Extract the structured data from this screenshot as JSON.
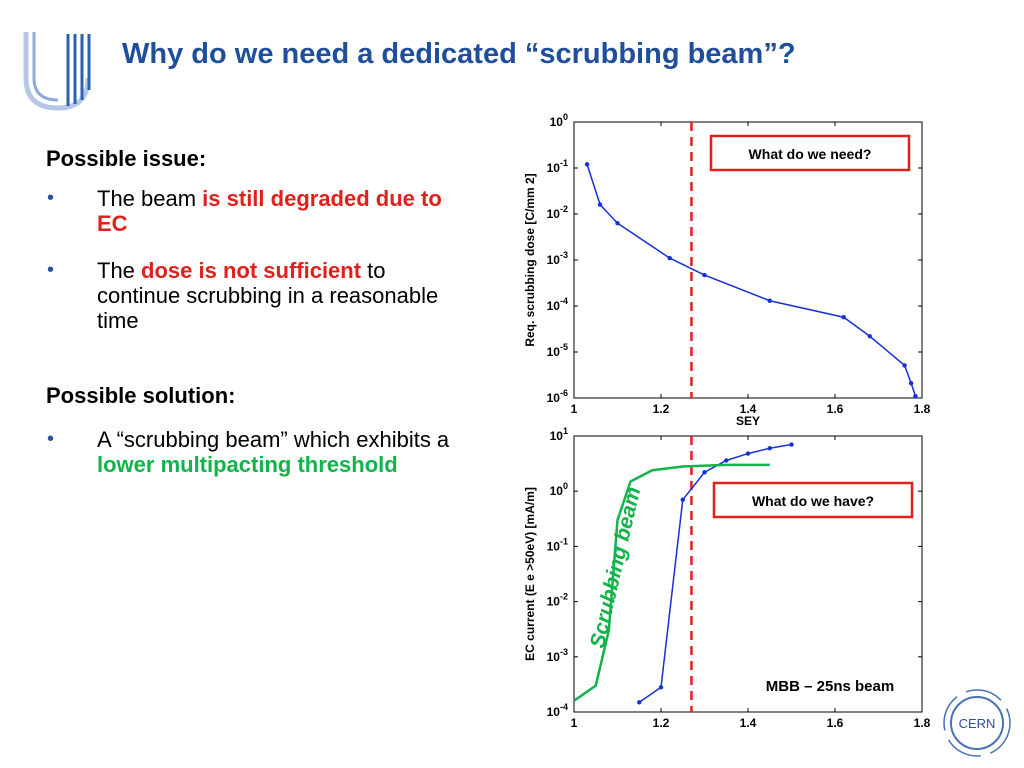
{
  "slide": {
    "title": "Why do we need a dedicated “scrubbing beam”?",
    "issue_heading": "Possible issue:",
    "issue_bullets": [
      {
        "pre": "The beam ",
        "hl": "is still degraded due to EC",
        "post": ""
      },
      {
        "pre": "The ",
        "hl": "dose is not sufficient",
        "post": " to continue scrubbing in a reasonable time"
      }
    ],
    "solution_heading": "Possible solution:",
    "solution_bullets": [
      {
        "pre": "A “scrubbing beam” which exhibits a ",
        "hl": "lower multipacting threshold",
        "post": ""
      }
    ],
    "bullet_char": "•",
    "colors": {
      "title": "#1f4e9a",
      "highlight_red": "#e0201b",
      "highlight_green": "#12b34b"
    },
    "logo_left": "university-logo",
    "logo_right_text": "CERN"
  },
  "chart_data": [
    {
      "type": "line",
      "xlabel": "SEY",
      "ylabel": "Req. scrubbing dose [C/mm 2]",
      "y_scale": "log",
      "xlim": [
        1,
        1.8
      ],
      "ylim": [
        1e-06,
        1
      ],
      "x_ticks": [
        "1",
        "1.2",
        "1.4",
        "1.6",
        "1.8"
      ],
      "y_ticks": [
        {
          "b": "10",
          "e": "0"
        },
        {
          "b": "10",
          "e": "-1"
        },
        {
          "b": "10",
          "e": "-2"
        },
        {
          "b": "10",
          "e": "-3"
        },
        {
          "b": "10",
          "e": "-4"
        },
        {
          "b": "10",
          "e": "-5"
        },
        {
          "b": "10",
          "e": "-6"
        }
      ],
      "series": [
        {
          "color": "#1530d6",
          "x": [
            1.03,
            1.06,
            1.1,
            1.22,
            1.3,
            1.45,
            1.62,
            1.68,
            1.76,
            1.775,
            1.785
          ],
          "y": [
            0.12,
            0.016,
            0.0063,
            0.0011,
            0.00047,
            0.00013,
            5.7e-05,
            2.2e-05,
            5.1e-06,
            2.1e-06,
            1.1e-06
          ]
        }
      ],
      "threshold_x": 1.27,
      "threshold_color": "#e0201b",
      "annotation": "What do we need?"
    },
    {
      "type": "line",
      "xlabel": "",
      "ylabel": "EC current (E e >50eV) [mA/m]",
      "y_scale": "log",
      "xlim": [
        1,
        1.8
      ],
      "ylim": [
        0.0001,
        10
      ],
      "x_ticks": [
        "1",
        "1.2",
        "1.4",
        "1.6",
        "1.8"
      ],
      "y_ticks": [
        {
          "b": "10",
          "e": "1"
        },
        {
          "b": "10",
          "e": "0"
        },
        {
          "b": "10",
          "e": "-1"
        },
        {
          "b": "10",
          "e": "-2"
        },
        {
          "b": "10",
          "e": "-3"
        },
        {
          "b": "10",
          "e": "-4"
        }
      ],
      "series": [
        {
          "color": "#1530d6",
          "markers": true,
          "x": [
            1.15,
            1.2,
            1.25,
            1.3,
            1.35,
            1.4,
            1.45,
            1.5
          ],
          "y": [
            0.00015,
            0.00028,
            0.7,
            2.2,
            3.6,
            4.8,
            6.0,
            7.0
          ]
        },
        {
          "color": "#12b34b",
          "markers": false,
          "x": [
            1.0,
            1.05,
            1.08,
            1.1,
            1.13,
            1.18,
            1.25,
            1.35,
            1.45
          ],
          "y": [
            0.00016,
            0.0003,
            0.003,
            0.3,
            1.5,
            2.4,
            2.8,
            3.0,
            3.0
          ]
        }
      ],
      "threshold_x": 1.27,
      "threshold_color": "#e0201b",
      "annotation": "What do we have?",
      "label_green": "Scrubbing beam",
      "footnote": "MBB – 25ns beam"
    }
  ]
}
